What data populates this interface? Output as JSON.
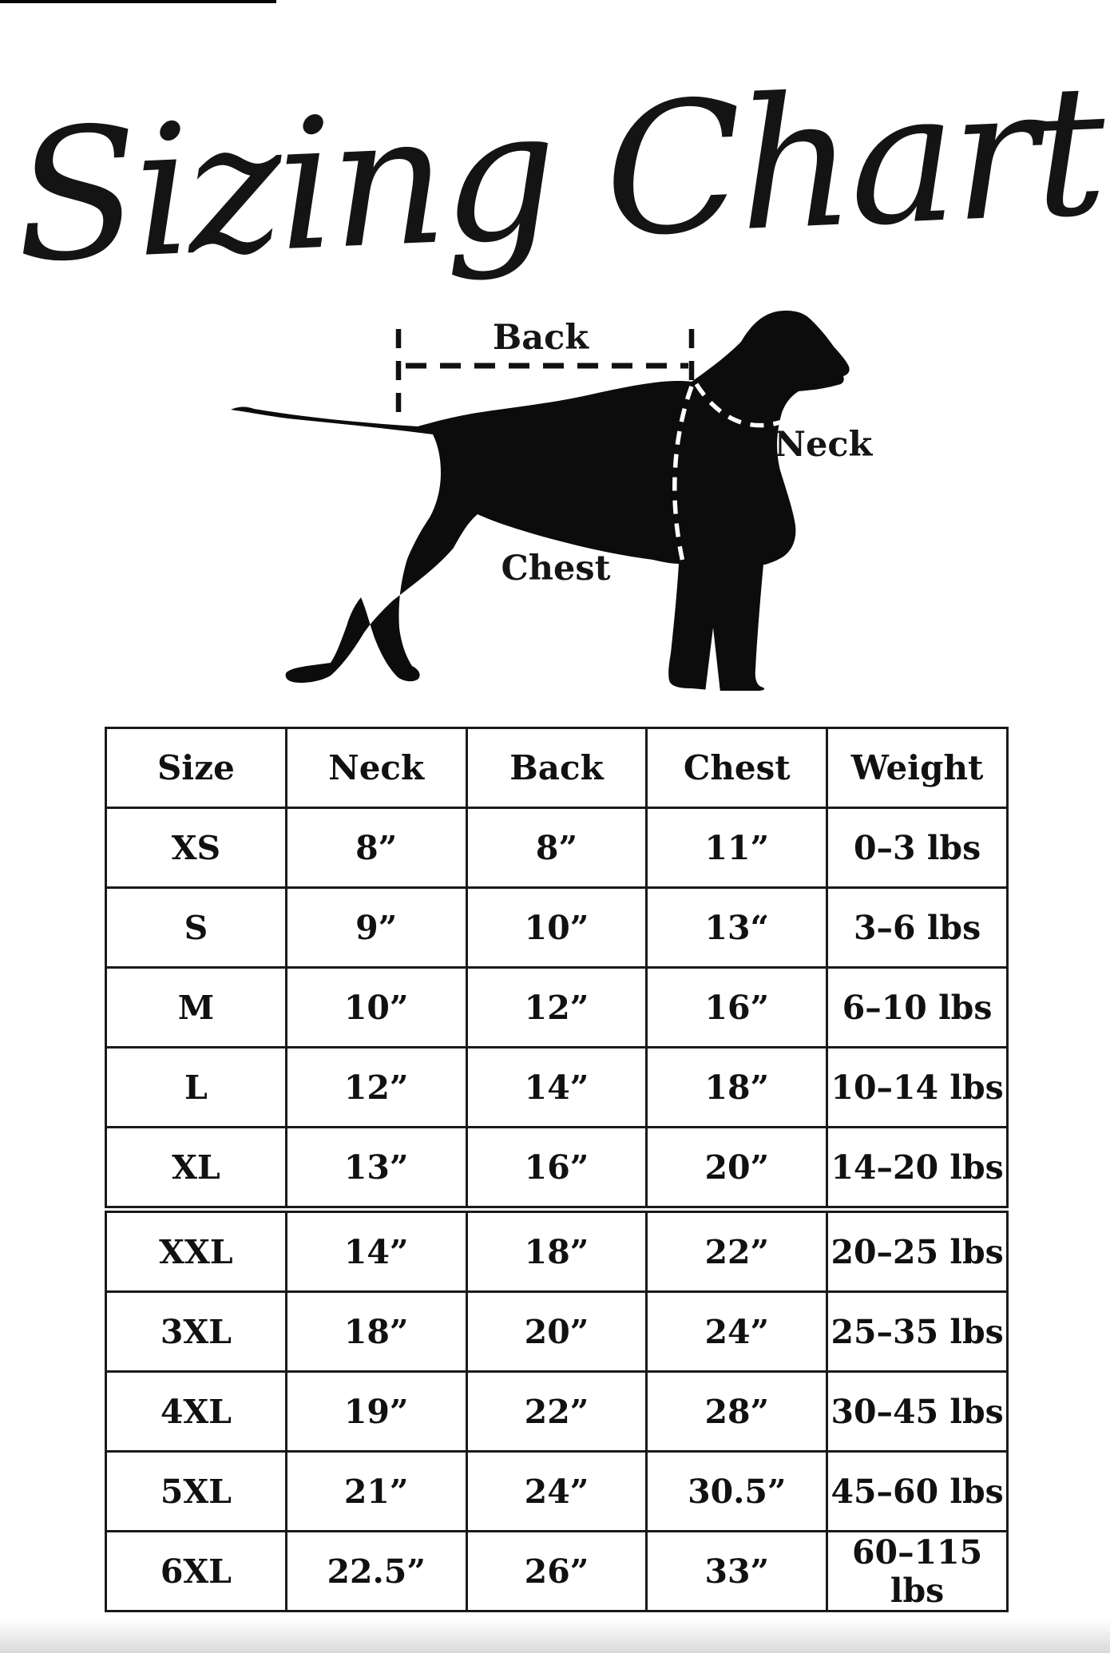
{
  "title": "Sizing Chart",
  "diagram": {
    "back_label": "Back",
    "neck_label": "Neck",
    "chest_label": "Chest"
  },
  "table": {
    "headers": [
      "Size",
      "Neck",
      "Back",
      "Chest",
      "Weight"
    ],
    "rows": [
      [
        "XS",
        "8”",
        "8”",
        "11”",
        "0–3 lbs"
      ],
      [
        "S",
        "9”",
        "10”",
        "13“",
        "3–6 lbs"
      ],
      [
        "M",
        "10”",
        "12”",
        "16”",
        "6–10 lbs"
      ],
      [
        "L",
        "12”",
        "14”",
        "18”",
        "10–14 lbs"
      ],
      [
        "XL",
        "13”",
        "16”",
        "20”",
        "14–20 lbs"
      ],
      [
        "XXL",
        "14”",
        "18”",
        "22”",
        "20–25 lbs"
      ],
      [
        "3XL",
        "18”",
        "20”",
        "24”",
        "25–35 lbs"
      ],
      [
        "4XL",
        "19”",
        "22”",
        "28”",
        "30–45 lbs"
      ],
      [
        "5XL",
        "21”",
        "24”",
        "30.5”",
        "45–60 lbs"
      ],
      [
        "6XL",
        "22.5”",
        "26”",
        "33”",
        "60–115 lbs"
      ]
    ],
    "split_after_row": 4
  },
  "chart_data": {
    "type": "table",
    "title": "Sizing Chart",
    "columns": [
      "Size",
      "Neck",
      "Back",
      "Chest",
      "Weight"
    ],
    "rows": [
      [
        "XS",
        "8”",
        "8”",
        "11”",
        "0–3 lbs"
      ],
      [
        "S",
        "9”",
        "10”",
        "13“",
        "3–6 lbs"
      ],
      [
        "M",
        "10”",
        "12”",
        "16”",
        "6–10 lbs"
      ],
      [
        "L",
        "12”",
        "14”",
        "18”",
        "10–14 lbs"
      ],
      [
        "XL",
        "13”",
        "16”",
        "20”",
        "14–20 lbs"
      ],
      [
        "XXL",
        "14”",
        "18”",
        "22”",
        "20–25 lbs"
      ],
      [
        "3XL",
        "18”",
        "20”",
        "24”",
        "25–35 lbs"
      ],
      [
        "4XL",
        "19”",
        "22”",
        "28”",
        "30–45 lbs"
      ],
      [
        "5XL",
        "21”",
        "24”",
        "30.5”",
        "45–60 lbs"
      ],
      [
        "6XL",
        "22.5”",
        "26”",
        "33”",
        "60–115 lbs"
      ]
    ]
  },
  "colors": {
    "ink": "#141414",
    "dog": "#0c0c0c",
    "border": "#1a1a1a",
    "background": "#ffffff"
  }
}
